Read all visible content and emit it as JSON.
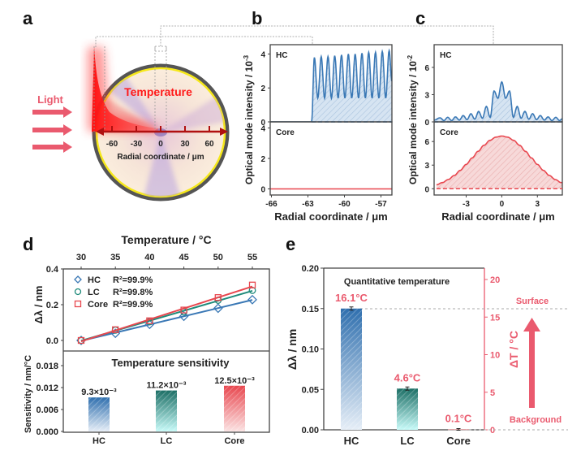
{
  "colors": {
    "blue": "#3a78b5",
    "teal": "#1e8a7a",
    "red": "#e8474f",
    "pink": "#ea5a6e",
    "dark_red": "#c01818"
  },
  "panel_labels": [
    "a",
    "b",
    "c",
    "d",
    "e"
  ],
  "panel_a": {
    "light_label": "Light",
    "temperature_label": "Temperature",
    "axis_label": "Radial coordinate / μm",
    "ticks": [
      "-60",
      "-30",
      "0",
      "30",
      "60"
    ]
  },
  "chart_data": [
    {
      "panel": "b",
      "type": "line",
      "ylabel": "Optical mode intensity / 10",
      "ylabel_exp": "-3",
      "xlabel": "Radial coordinate / μm",
      "xlim": [
        -66.1,
        -56.1
      ],
      "xticks": [
        "-66",
        "-63",
        "-60",
        "-57"
      ],
      "subplots": [
        {
          "name": "HC",
          "ylim": [
            0,
            4.55
          ],
          "yticks": [
            "0",
            "2",
            "4"
          ],
          "color": "blue",
          "points": [
            [
              -66.1,
              0
            ],
            [
              -62.7,
              0
            ],
            [
              -62.47,
              3.8
            ],
            [
              -62.19,
              1.4
            ],
            [
              -61.91,
              3.85
            ],
            [
              -61.63,
              1.4
            ],
            [
              -61.35,
              3.85
            ],
            [
              -61.07,
              1.4
            ],
            [
              -60.8,
              3.9
            ],
            [
              -60.52,
              1.4
            ],
            [
              -60.24,
              3.95
            ],
            [
              -59.96,
              1.4
            ],
            [
              -59.68,
              4.0
            ],
            [
              -59.4,
              1.4
            ],
            [
              -59.12,
              4.0
            ],
            [
              -58.84,
              1.4
            ],
            [
              -58.56,
              4.05
            ],
            [
              -58.28,
              1.4
            ],
            [
              -58.01,
              4.1
            ],
            [
              -57.73,
              1.4
            ],
            [
              -57.45,
              4.1
            ],
            [
              -57.17,
              1.4
            ],
            [
              -56.89,
              4.15
            ],
            [
              -56.61,
              1.4
            ],
            [
              -56.33,
              4.2
            ],
            [
              -56.1,
              2.4
            ]
          ]
        },
        {
          "name": "Core",
          "ylim": [
            -0.4,
            4.4
          ],
          "yticks": [
            "0",
            "2",
            "4"
          ],
          "color": "red",
          "points": [
            [
              -66.1,
              0
            ],
            [
              -56.1,
              0
            ]
          ]
        }
      ]
    },
    {
      "panel": "c",
      "type": "line",
      "ylabel": "Optical mode intensity / 10",
      "ylabel_exp": "-2",
      "xlabel": "Radial coordinate / μm",
      "xlim": [
        -5.7,
        5.1
      ],
      "xticks": [
        "-3",
        "0",
        "3"
      ],
      "subplots": [
        {
          "name": "HC",
          "ylim": [
            0,
            8.5
          ],
          "yticks": [
            "0",
            "3",
            "6"
          ],
          "color": "blue",
          "points": [
            [
              -5.7,
              0.2
            ],
            [
              -5.2,
              0.45
            ],
            [
              -4.875,
              0.15
            ],
            [
              -4.55,
              0.5
            ],
            [
              -4.225,
              0.15
            ],
            [
              -3.9,
              0.55
            ],
            [
              -3.575,
              0.2
            ],
            [
              -3.25,
              0.7
            ],
            [
              -2.925,
              0.25
            ],
            [
              -2.6,
              0.9
            ],
            [
              -2.275,
              0.3
            ],
            [
              -1.95,
              1.15
            ],
            [
              -1.625,
              0.4
            ],
            [
              -1.3,
              1.7
            ],
            [
              -0.975,
              0.5
            ],
            [
              -0.65,
              3.4
            ],
            [
              -0.325,
              2.6
            ],
            [
              0,
              4.4
            ],
            [
              0.325,
              2.6
            ],
            [
              0.65,
              3.4
            ],
            [
              0.975,
              0.5
            ],
            [
              1.3,
              1.7
            ],
            [
              1.625,
              0.4
            ],
            [
              1.95,
              1.15
            ],
            [
              2.275,
              0.3
            ],
            [
              2.6,
              0.9
            ],
            [
              2.925,
              0.25
            ],
            [
              3.25,
              0.7
            ],
            [
              3.575,
              0.2
            ],
            [
              3.9,
              0.55
            ],
            [
              4.225,
              0.15
            ],
            [
              4.55,
              0.5
            ],
            [
              4.875,
              0.15
            ],
            [
              5.1,
              0.35
            ]
          ]
        },
        {
          "name": "Core",
          "ylim": [
            -0.8,
            8.5
          ],
          "yticks": [
            "0",
            "3",
            "6"
          ],
          "color": "red",
          "points": [
            [
              -5.5,
              0.5
            ],
            [
              -5,
              0.78
            ],
            [
              -4.5,
              1.17
            ],
            [
              -4,
              1.69
            ],
            [
              -3.5,
              2.33
            ],
            [
              -3,
              3.09
            ],
            [
              -2.5,
              3.91
            ],
            [
              -2,
              4.75
            ],
            [
              -1.5,
              5.52
            ],
            [
              -1,
              6.15
            ],
            [
              -0.5,
              6.56
            ],
            [
              0,
              6.7
            ],
            [
              0.5,
              6.56
            ],
            [
              1,
              6.15
            ],
            [
              1.5,
              5.52
            ],
            [
              2,
              4.75
            ],
            [
              2.5,
              3.91
            ],
            [
              3,
              3.09
            ],
            [
              3.5,
              2.33
            ],
            [
              4,
              1.69
            ],
            [
              4.5,
              1.17
            ],
            [
              5,
              0.78
            ],
            [
              5.5,
              0.5
            ]
          ]
        }
      ]
    },
    {
      "panel": "d-top",
      "type": "scatter",
      "xlabel": "Temperature / °C",
      "ylabel": "Δλ / nm",
      "x": [
        30,
        35,
        40,
        45,
        50,
        55
      ],
      "xticks": [
        "30",
        "35",
        "40",
        "45",
        "50",
        "55"
      ],
      "yticks": [
        "0.0",
        "0.2",
        "0.4"
      ],
      "ylim": [
        -0.06,
        0.4
      ],
      "series": [
        {
          "name": "HC",
          "r2": "R²=99.9%",
          "marker": "diamond",
          "color": "blue",
          "values": [
            0,
            0.04,
            0.09,
            0.135,
            0.18,
            0.228
          ]
        },
        {
          "name": "LC",
          "r2": "R²=99.8%",
          "marker": "circle",
          "color": "teal",
          "values": [
            0,
            0.058,
            0.105,
            0.16,
            0.225,
            0.28
          ]
        },
        {
          "name": "Core",
          "r2": "R²=99.9%",
          "marker": "square",
          "color": "red",
          "values": [
            0,
            0.06,
            0.11,
            0.17,
            0.24,
            0.31
          ]
        }
      ],
      "legend": "top-left"
    },
    {
      "panel": "d-bottom",
      "type": "bar",
      "title": "Temperature sensitivity",
      "ylabel": "Sensitivity / nm/°C",
      "categories": [
        "HC",
        "LC",
        "Core"
      ],
      "values": [
        0.0093,
        0.0112,
        0.0125
      ],
      "value_labels": [
        "9.3×10⁻³",
        "11.2×10⁻³",
        "12.5×10⁻³"
      ],
      "colors": [
        "blue",
        "teal",
        "red"
      ],
      "yticks": [
        "0.000",
        "0.006",
        "0.012",
        "0.018"
      ],
      "ylim": [
        0,
        0.0219
      ]
    },
    {
      "panel": "e",
      "type": "bar",
      "title": "Quantitative temperature",
      "ylabel": "Δλ / nm",
      "y2label": "ΔT / °C",
      "categories": [
        "HC",
        "LC",
        "Core"
      ],
      "values": [
        0.15,
        0.051,
        0.0005
      ],
      "errors": [
        0.002,
        0.002,
        0.001
      ],
      "value_labels": [
        "16.1°C",
        "4.6°C",
        "0.1°C"
      ],
      "colors": [
        "blue",
        "teal",
        "red"
      ],
      "ylim": [
        0,
        0.2
      ],
      "yticks": [
        "0.00",
        "0.05",
        "0.10",
        "0.15",
        "0.20"
      ],
      "y2lim": [
        0,
        21.5
      ],
      "y2ticks": [
        "0",
        "5",
        "10",
        "15",
        "20"
      ],
      "annotations": {
        "top": "Surface",
        "bottom": "Background"
      }
    }
  ]
}
